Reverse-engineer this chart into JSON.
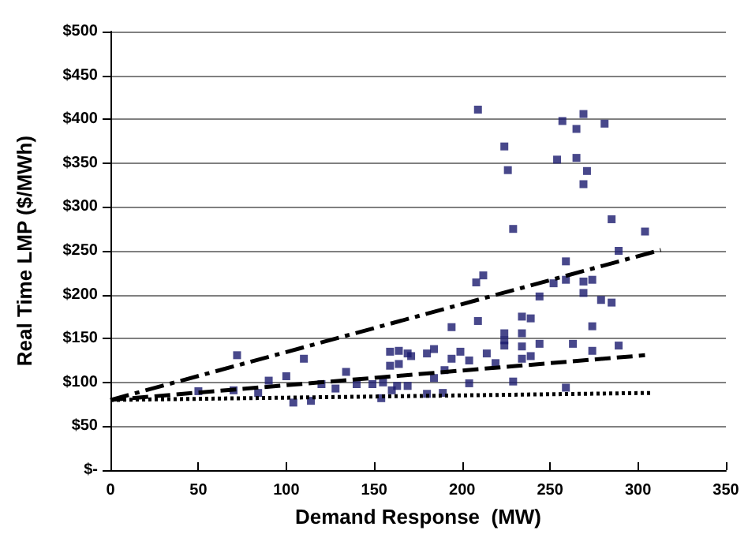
{
  "chart_data": {
    "type": "scatter",
    "xlabel": "Demand Response  (MW)",
    "ylabel": "Real Time LMP ($/MWh)",
    "xlim": [
      0,
      350
    ],
    "xticks": [
      0,
      50,
      100,
      150,
      200,
      250,
      300,
      350
    ],
    "ylim": [
      0,
      500
    ],
    "yticks": [
      {
        "value": 0,
        "label": "$-"
      },
      {
        "value": 50,
        "label": "$50"
      },
      {
        "value": 100,
        "label": "$100"
      },
      {
        "value": 150,
        "label": "$150"
      },
      {
        "value": 200,
        "label": "$200"
      },
      {
        "value": 250,
        "label": "$250"
      },
      {
        "value": 300,
        "label": "$300"
      },
      {
        "value": 350,
        "label": "$350"
      },
      {
        "value": 400,
        "label": "$400"
      },
      {
        "value": 450,
        "label": "$450"
      },
      {
        "value": 500,
        "label": "$500"
      }
    ],
    "grid": "y",
    "series": [
      {
        "color": "#1a1a6e",
        "marker": "square",
        "x": [
          72,
          110,
          90,
          100,
          104,
          114,
          50,
          70,
          84,
          120,
          128,
          134,
          140,
          149,
          154,
          155,
          159,
          159,
          160,
          164,
          164,
          163,
          169,
          169,
          171,
          180,
          180,
          184,
          184,
          189,
          190,
          194,
          194,
          199,
          204,
          204,
          208,
          212,
          209,
          209,
          214,
          219,
          224,
          226,
          229,
          224,
          224,
          224,
          229,
          234,
          239,
          234,
          234,
          234,
          239,
          244,
          244,
          252,
          254,
          257,
          259,
          259,
          259,
          263,
          265,
          265,
          269,
          269,
          269,
          269,
          271,
          274,
          274,
          274,
          279,
          281,
          285,
          285,
          289,
          289,
          304
        ],
        "values": [
          131,
          127,
          102,
          107,
          77,
          79,
          90,
          91,
          88,
          98,
          93,
          112,
          98,
          98,
          82,
          100,
          135,
          119,
          91,
          136,
          121,
          96,
          96,
          133,
          130,
          87,
          133,
          138,
          105,
          88,
          114,
          163,
          127,
          135,
          125,
          99,
          214,
          222,
          170,
          411,
          133,
          122,
          369,
          342,
          275,
          156,
          148,
          142,
          101,
          175,
          173,
          156,
          141,
          127,
          130,
          144,
          198,
          213,
          354,
          398,
          238,
          217,
          94,
          144,
          389,
          356,
          406,
          326,
          215,
          202,
          341,
          217,
          164,
          136,
          194,
          395,
          191,
          286,
          250,
          142,
          272
        ]
      },
      {
        "type": "line",
        "color": "#000000",
        "marker": "none",
        "line_style": "dashdot",
        "x": [
          0,
          313
        ],
        "values": [
          80,
          251
        ]
      },
      {
        "type": "line",
        "color": "#000000",
        "marker": "none",
        "line_style": "dashed",
        "x": [
          0,
          304
        ],
        "values": [
          80,
          131
        ]
      },
      {
        "type": "line",
        "color": "#000000",
        "marker": "none",
        "line_style": "dotted",
        "x": [
          0,
          307
        ],
        "values": [
          80,
          88
        ]
      }
    ]
  }
}
